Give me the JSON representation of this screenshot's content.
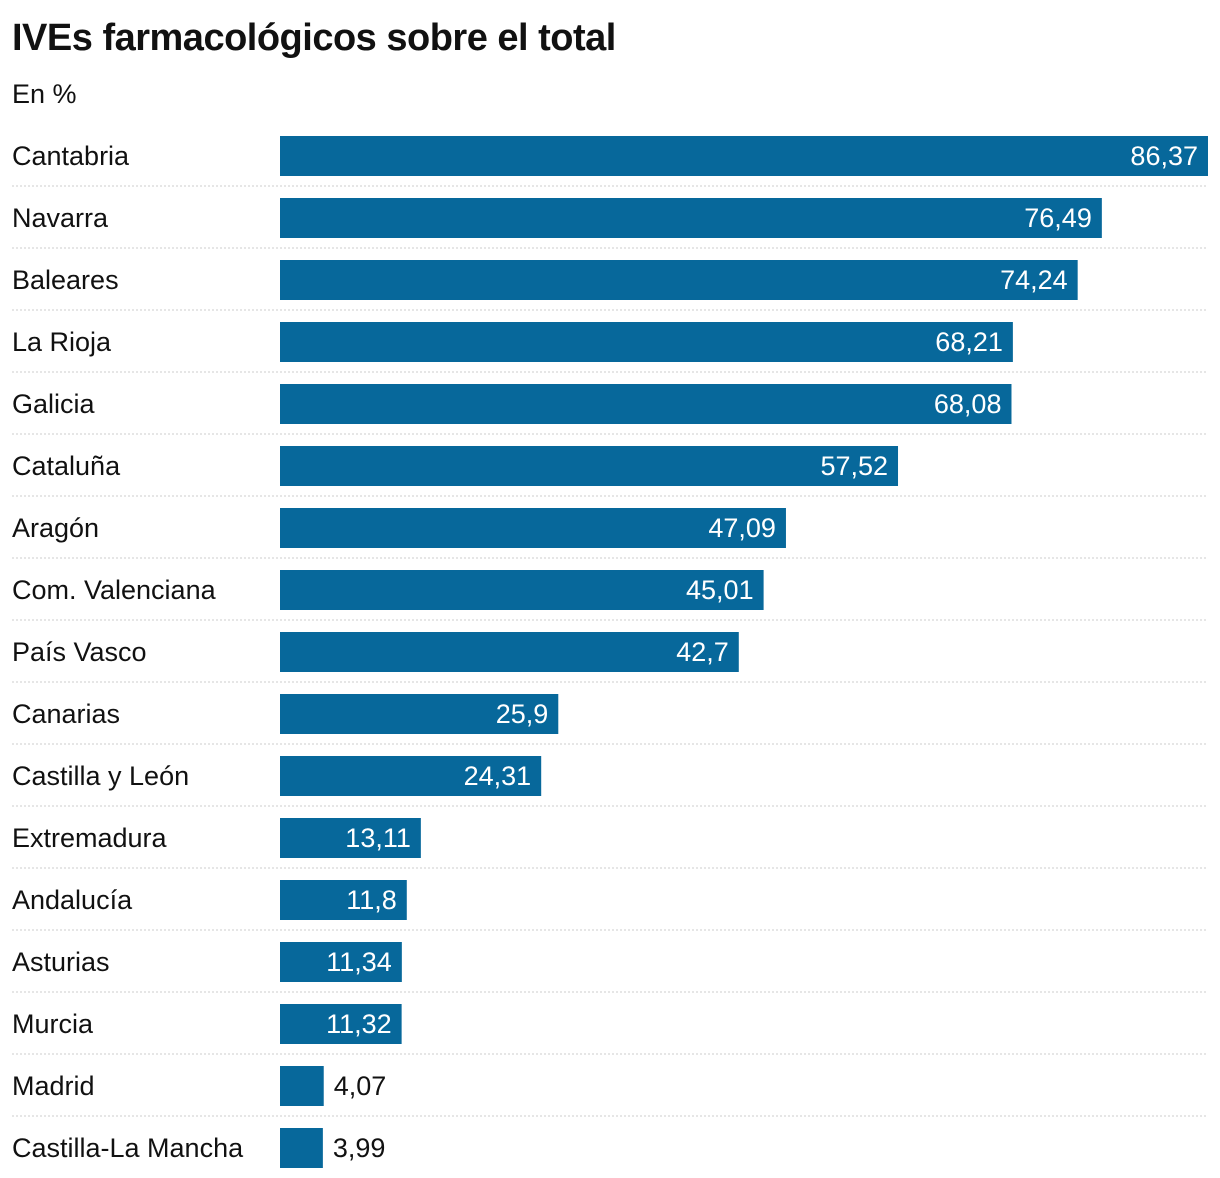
{
  "chart_data": {
    "type": "bar",
    "orientation": "horizontal",
    "title": "IVEs farmacológicos sobre el total",
    "subtitle": "En %",
    "categories": [
      "Cantabria",
      "Navarra",
      "Baleares",
      "La Rioja",
      "Galicia",
      "Cataluña",
      "Aragón",
      "Com. Valenciana",
      "País Vasco",
      "Canarias",
      "Castilla y León",
      "Extremadura",
      "Andalucía",
      "Asturias",
      "Murcia",
      "Madrid",
      "Castilla-La Mancha"
    ],
    "values": [
      86.37,
      76.49,
      74.24,
      68.21,
      68.08,
      57.52,
      47.09,
      45.01,
      42.7,
      25.9,
      24.31,
      13.11,
      11.8,
      11.34,
      11.32,
      4.07,
      3.99
    ],
    "value_labels": [
      "86,37",
      "76,49",
      "74,24",
      "68,21",
      "68,08",
      "57,52",
      "47,09",
      "45,01",
      "42,7",
      "25,9",
      "24,31",
      "13,11",
      "11,8",
      "11,34",
      "11,32",
      "4,07",
      "3,99"
    ],
    "xlim": [
      0,
      86.37
    ],
    "grid": false,
    "legend": "none",
    "bar_color": "#07689b",
    "label_inside_color": "#ffffff",
    "label_outside_color": "#111111",
    "separator_color": "#cccccc"
  }
}
